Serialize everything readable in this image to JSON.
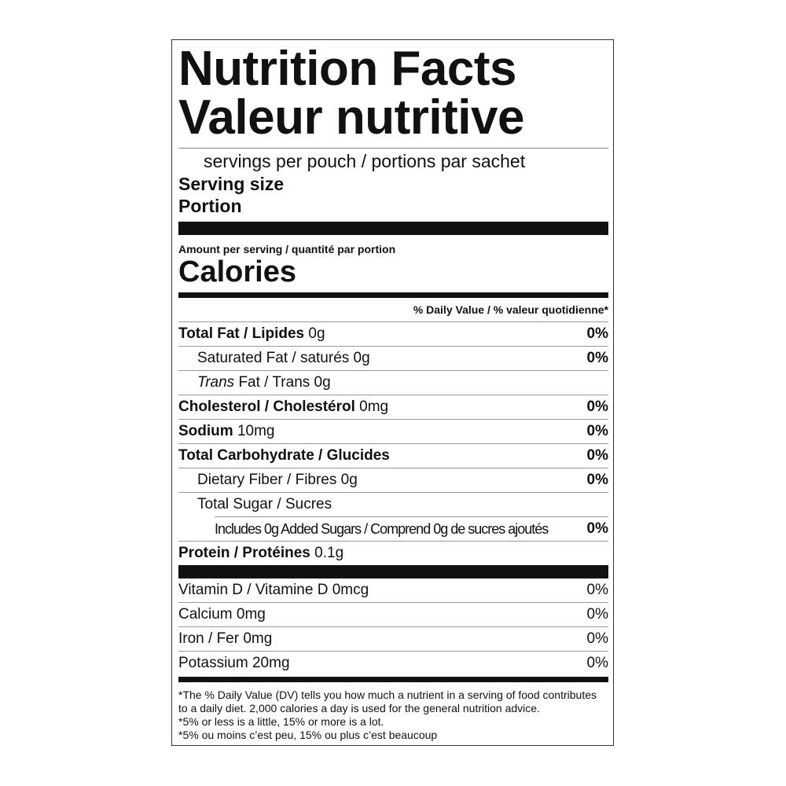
{
  "title_en": "Nutrition Facts",
  "title_fr": "Valeur nutritive",
  "servings": "servings per pouch / portions par sachet",
  "serving_size": "Serving size",
  "portion": "Portion",
  "amount_per_serving": "Amount per serving / quantité par portion",
  "calories": "Calories",
  "dv_header": "% Daily Value / % valeur quotidienne*",
  "nutrients": [
    {
      "name": "Total Fat / Lipides",
      "amount": "0g",
      "dv": "0%"
    },
    {
      "name": "Saturated Fat / saturés",
      "amount": "0g",
      "dv": "0%"
    },
    {
      "name_italic": "Trans",
      "name": " Fat / Trans",
      "amount": "0g",
      "dv": ""
    },
    {
      "name": "Cholesterol / Cholestérol",
      "amount": "0mg",
      "dv": "0%"
    },
    {
      "name": "Sodium",
      "amount": "10mg",
      "dv": "0%"
    },
    {
      "name": "Total Carbohydrate / Glucides",
      "amount": "",
      "dv": "0%"
    },
    {
      "name": "Dietary Fiber / Fibres",
      "amount": "0g",
      "dv": "0%"
    },
    {
      "name": "Total Sugar / Sucres",
      "amount": "",
      "dv": ""
    },
    {
      "name": "Includes 0g Added Sugars / Comprend 0g de sucres ajoutés",
      "amount": "",
      "dv": "0%"
    },
    {
      "name": "Protein / Protéines",
      "amount": "0.1g",
      "dv": ""
    }
  ],
  "vitamins": [
    {
      "name": "Vitamin D / Vitamine D 0mcg",
      "dv": "0%"
    },
    {
      "name": "Calcium 0mg",
      "dv": "0%"
    },
    {
      "name": "Iron / Fer 0mg",
      "dv": "0%"
    },
    {
      "name": "Potassium 20mg",
      "dv": "0%"
    }
  ],
  "footnotes": [
    "*The % Daily Value (DV) tells you how much a nutrient in a serving of food contributes to a daily diet. 2,000 calories a day is used for the general nutrition advice.",
    "*5% or less is a little, 15% or more is a lot.",
    "*5% ou moins c’est peu, 15% ou plus c’est beaucoup"
  ]
}
